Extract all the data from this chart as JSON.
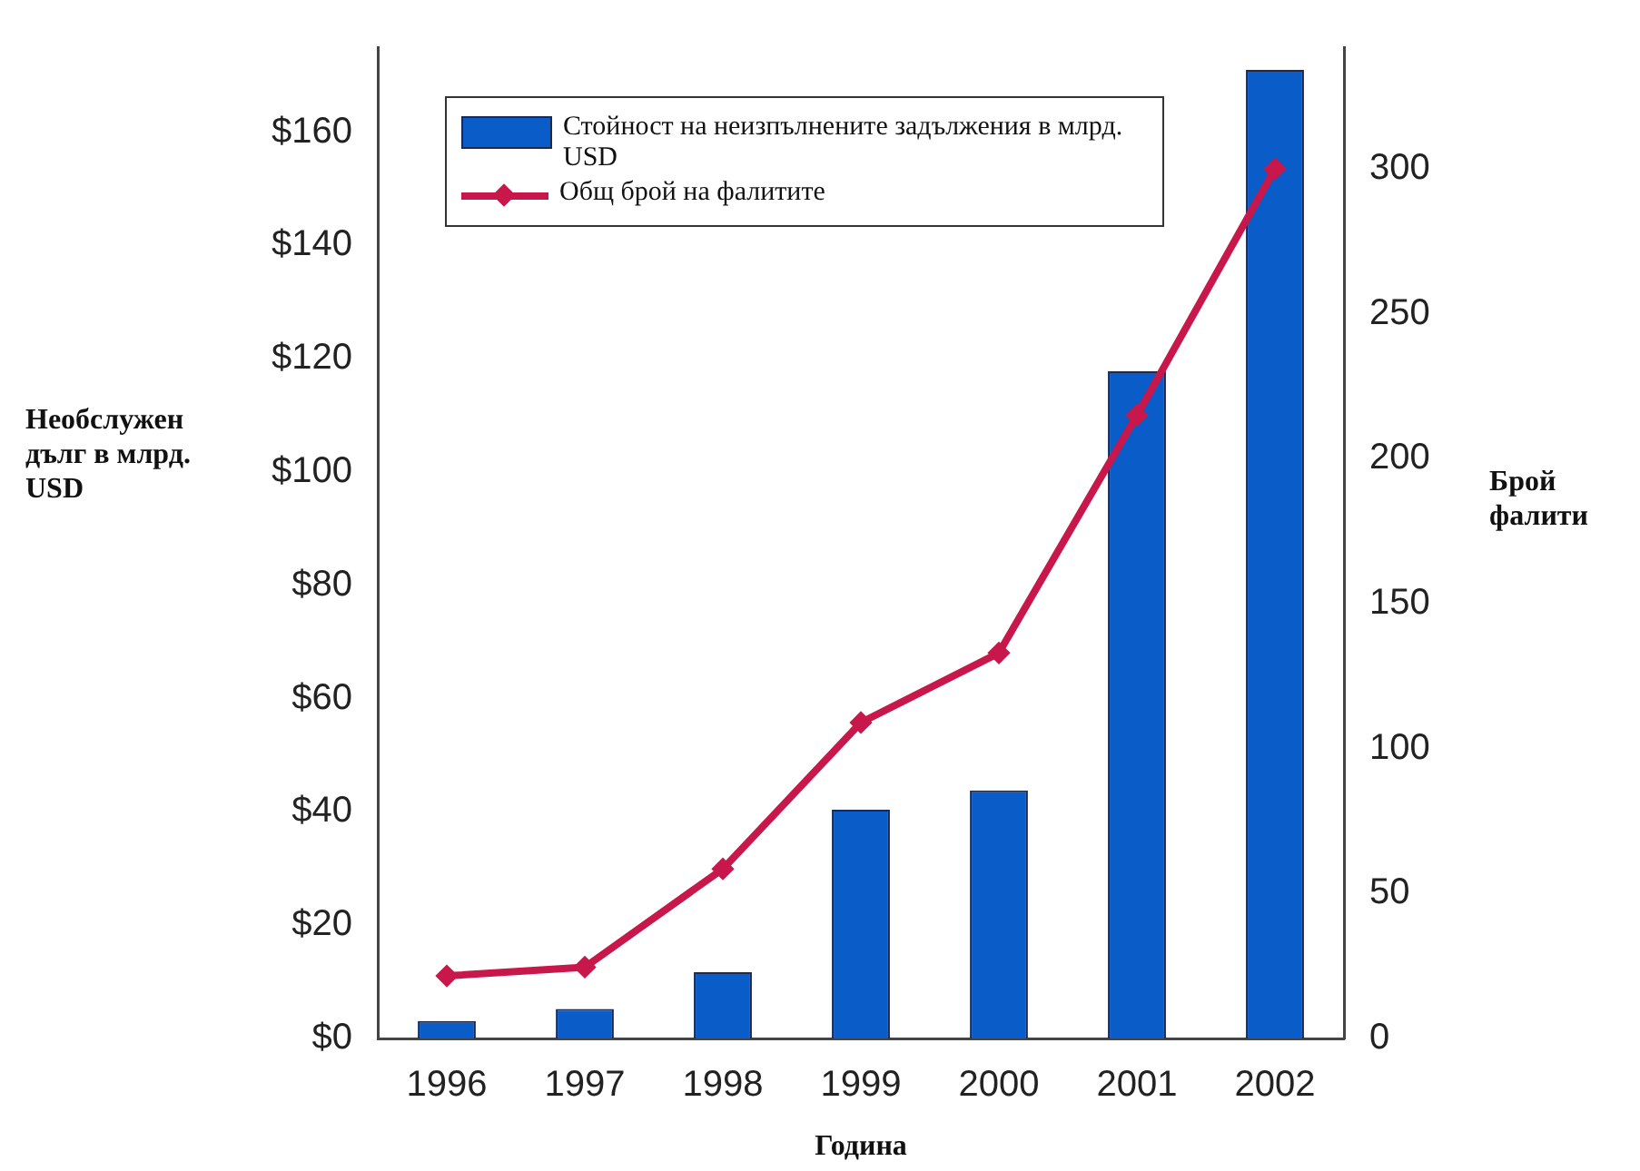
{
  "chart_data": {
    "type": "bar",
    "categories": [
      "1996",
      "1997",
      "1998",
      "1999",
      "2000",
      "2001",
      "2002"
    ],
    "xlabel": "Година",
    "ylabel": "Необслужен дълг в млрд. USD",
    "y2label": "Брой фалити",
    "ylim": [
      0,
      175
    ],
    "yticks": [
      {
        "value": 0,
        "label": "$0"
      },
      {
        "value": 20,
        "label": "$20"
      },
      {
        "value": 40,
        "label": "$40"
      },
      {
        "value": 60,
        "label": "$60"
      },
      {
        "value": 80,
        "label": "$80"
      },
      {
        "value": 100,
        "label": "$100"
      },
      {
        "value": 120,
        "label": "$120"
      },
      {
        "value": 140,
        "label": "$140"
      },
      {
        "value": 160,
        "label": "$160"
      }
    ],
    "y2lim": [
      0,
      342
    ],
    "y2ticks": [
      0,
      50,
      100,
      150,
      200,
      250,
      300
    ],
    "series": [
      {
        "name": "Стойност на неизпълнените задължения в млрд. USD",
        "color": "#0a5cc8",
        "values": [
          3.1,
          5.2,
          11.7,
          40.4,
          43.8,
          117.8,
          171
        ]
      },
      {
        "type": "line",
        "name": "Общ брой на фалитите",
        "color": "#c8174a",
        "axis": "y2",
        "marker": "diamond",
        "values": [
          21.6,
          24.6,
          58.5,
          109,
          133,
          215,
          300
        ]
      }
    ],
    "grid": false,
    "legend": "top left"
  }
}
